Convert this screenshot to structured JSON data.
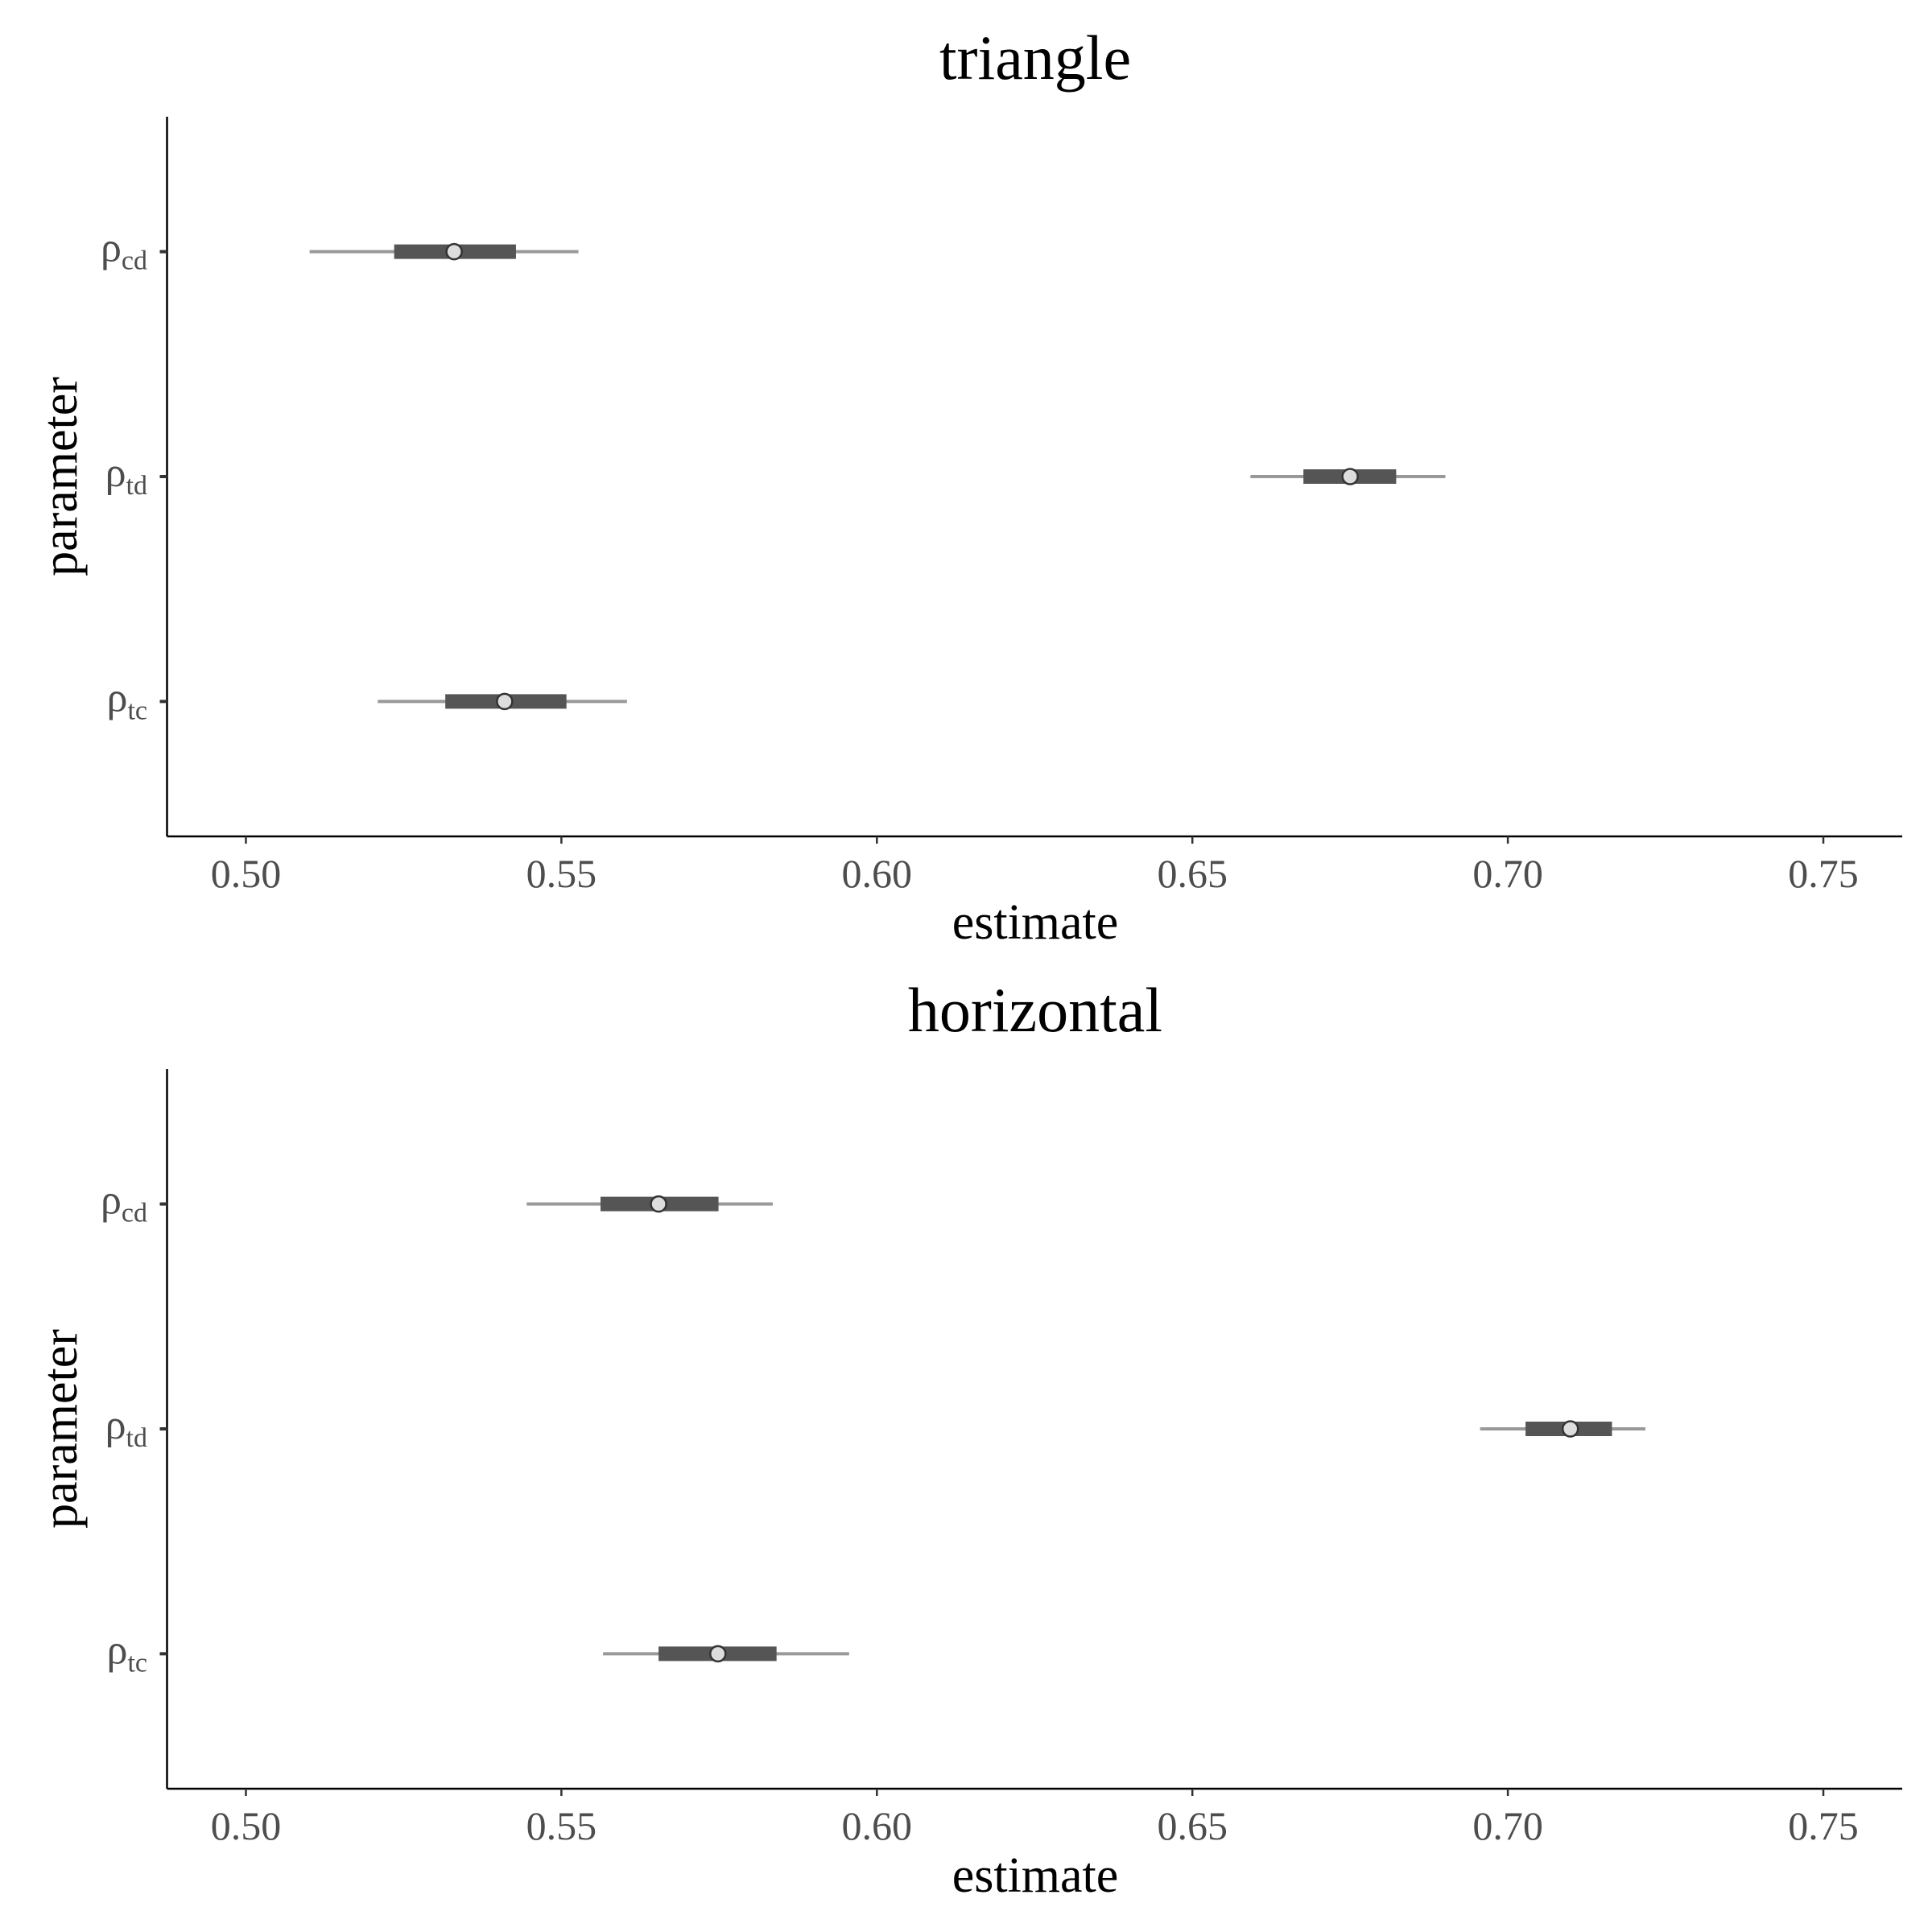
{
  "chart_data": [
    {
      "type": "pointinterval",
      "title": "triangle",
      "xlabel": "estimate",
      "ylabel": "parameter",
      "xlim": [
        0.4875,
        0.7625
      ],
      "xticks": [
        "0.50",
        "0.55",
        "0.60",
        "0.65",
        "0.70",
        "0.75"
      ],
      "grid": false,
      "categories": [
        {
          "symbol": "ρ",
          "sub": "cd"
        },
        {
          "symbol": "ρ",
          "sub": "td"
        },
        {
          "symbol": "ρ",
          "sub": "tc"
        }
      ],
      "estimates": [
        0.533,
        0.675,
        0.541
      ],
      "inner_interval": [
        [
          0.5235,
          0.5428
        ],
        [
          0.6676,
          0.6823
        ],
        [
          0.5316,
          0.5508
        ]
      ],
      "outer_interval": [
        [
          0.5101,
          0.5527
        ],
        [
          0.6592,
          0.6901
        ],
        [
          0.5209,
          0.5604
        ]
      ]
    },
    {
      "type": "pointinterval",
      "title": "horizontal",
      "xlabel": "estimate",
      "ylabel": "parameter",
      "xlim": [
        0.4875,
        0.7625
      ],
      "xticks": [
        "0.50",
        "0.55",
        "0.60",
        "0.65",
        "0.70",
        "0.75"
      ],
      "grid": false,
      "categories": [
        {
          "symbol": "ρ",
          "sub": "cd"
        },
        {
          "symbol": "ρ",
          "sub": "td"
        },
        {
          "symbol": "ρ",
          "sub": "tc"
        }
      ],
      "estimates": [
        0.5654,
        0.7099,
        0.5748
      ],
      "inner_interval": [
        [
          0.5562,
          0.5749
        ],
        [
          0.7028,
          0.7165
        ],
        [
          0.5654,
          0.5841
        ]
      ],
      "outer_interval": [
        [
          0.5445,
          0.5835
        ],
        [
          0.6956,
          0.7218
        ],
        [
          0.5566,
          0.5956
        ]
      ]
    }
  ]
}
